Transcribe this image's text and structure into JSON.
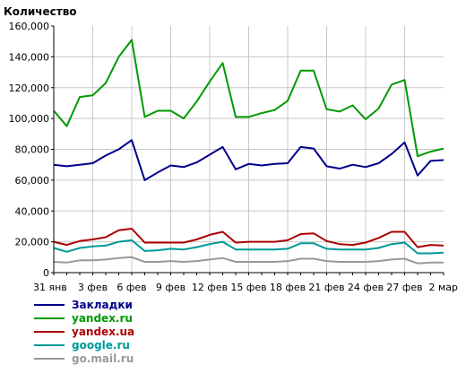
{
  "chart_data": {
    "type": "line",
    "ylabel": "Количество",
    "ylim": [
      0,
      160000
    ],
    "y_ticks": [
      "0",
      "20,000",
      "40,000",
      "60,000",
      "80,000",
      "100,000",
      "120,000",
      "140,000",
      "160,000"
    ],
    "x_tick_labels": [
      "31 янв",
      "3 фев",
      "6 фев",
      "9 фев",
      "12 фев",
      "15 фев",
      "18 фев",
      "21 фев",
      "24 фев",
      "27 фев",
      "2 мар"
    ],
    "x_tick_positions": [
      0,
      3,
      6,
      9,
      12,
      15,
      18,
      21,
      24,
      27,
      30
    ],
    "x_count": 31,
    "grid": true,
    "legend_position": "bottom-left",
    "series": [
      {
        "name": "Закладки",
        "color": "#00008b",
        "values": [
          70000,
          69000,
          70000,
          71000,
          76000,
          80000,
          86000,
          60000,
          65000,
          69500,
          68500,
          71500,
          76500,
          81500,
          67000,
          70500,
          69500,
          70500,
          71000,
          81500,
          80500,
          69000,
          67500,
          70000,
          68500,
          71000,
          77000,
          84500,
          63000,
          72500,
          73000
        ]
      },
      {
        "name": "yandex.ru",
        "color": "#009900",
        "values": [
          105000,
          95000,
          114000,
          115000,
          123000,
          140000,
          151000,
          101000,
          105000,
          105000,
          100000,
          111000,
          124000,
          136000,
          101000,
          101000,
          103500,
          105500,
          111500,
          131000,
          131000,
          106000,
          104500,
          108500,
          99500,
          106500,
          122000,
          125000,
          75500,
          78500,
          80500
        ]
      },
      {
        "name": "yandex.ua",
        "color": "#aa0000",
        "values": [
          20000,
          18000,
          20500,
          21500,
          23000,
          27500,
          28500,
          19500,
          19500,
          19500,
          19500,
          21500,
          24500,
          26500,
          19500,
          20000,
          20000,
          20000,
          21000,
          25000,
          25500,
          20500,
          18500,
          18000,
          19500,
          22500,
          26500,
          26500,
          16500,
          18000,
          17500
        ]
      },
      {
        "name": "google.ru",
        "color": "#009999",
        "values": [
          16000,
          13500,
          16000,
          17000,
          17500,
          20000,
          21000,
          14000,
          14500,
          15500,
          15000,
          16500,
          18500,
          20000,
          15000,
          15000,
          15000,
          15000,
          15500,
          19000,
          19000,
          15500,
          15000,
          15000,
          15000,
          16000,
          18500,
          19500,
          12500,
          12500,
          13000
        ]
      },
      {
        "name": "go.mail.ru",
        "color": "#999999",
        "values": [
          7000,
          6500,
          8000,
          8000,
          8500,
          9500,
          10000,
          7000,
          7000,
          7500,
          7000,
          7500,
          8500,
          9500,
          7000,
          7000,
          7000,
          7000,
          7500,
          9000,
          9000,
          7500,
          7000,
          7000,
          7000,
          7500,
          8500,
          9000,
          6000,
          6500,
          6500
        ]
      }
    ]
  }
}
